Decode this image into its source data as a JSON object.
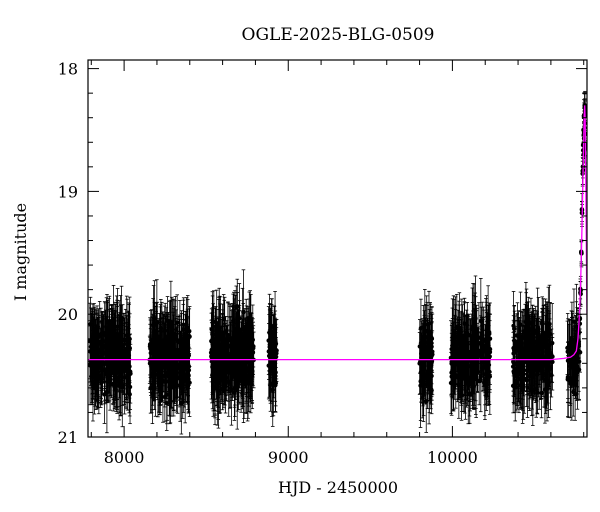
{
  "chart_data": {
    "type": "scatter",
    "title": "OGLE-2025-BLG-0509",
    "xlabel": "HJD - 2450000",
    "ylabel": "I magnitude",
    "xlim": [
      7780,
      10820
    ],
    "ylim": [
      21,
      17.93
    ],
    "y_inverted": true,
    "xticks_major": [
      8000,
      9000,
      10000
    ],
    "xticks_minor_step": 200,
    "yticks_major": [
      18,
      19,
      20,
      21
    ],
    "yticks_minor_step": 0.2,
    "tick_labels_x": [
      "8000",
      "9000",
      "10000"
    ],
    "tick_labels_y": [
      "18",
      "19",
      "20",
      "21"
    ],
    "grid": false,
    "legend": "none",
    "colors": {
      "data": "#000000",
      "model": "#ff00ff",
      "frame": "#000000"
    },
    "series": [
      {
        "kind": "observations-with-errorbars",
        "baseline_mag": 20.35,
        "typical_scatter": 0.22,
        "typical_error": 0.25,
        "seasons": [
          {
            "x_start": 7790,
            "x_end": 8040,
            "points": 260
          },
          {
            "x_start": 8155,
            "x_end": 8400,
            "points": 260
          },
          {
            "x_start": 8530,
            "x_end": 8790,
            "points": 300
          },
          {
            "x_start": 8880,
            "x_end": 8930,
            "points": 60
          },
          {
            "x_start": 9800,
            "x_end": 9880,
            "points": 90
          },
          {
            "x_start": 9990,
            "x_end": 10230,
            "points": 230
          },
          {
            "x_start": 10370,
            "x_end": 10610,
            "points": 230
          },
          {
            "x_start": 10700,
            "x_end": 10780,
            "points": 60
          }
        ],
        "rise": [
          [
            10770,
            20.25
          ],
          [
            10775,
            20.05
          ],
          [
            10780,
            19.8
          ],
          [
            10785,
            19.5
          ],
          [
            10790,
            19.15
          ],
          [
            10795,
            18.85
          ],
          [
            10798,
            18.65
          ],
          [
            10800,
            18.55
          ],
          [
            10803,
            18.4
          ],
          [
            10806,
            18.3
          ],
          [
            10808,
            18.37
          ],
          [
            10810,
            18.6
          ]
        ]
      },
      {
        "kind": "model-curve",
        "points": [
          [
            7780,
            20.37
          ],
          [
            10600,
            20.37
          ],
          [
            10680,
            20.36
          ],
          [
            10720,
            20.35
          ],
          [
            10740,
            20.33
          ],
          [
            10755,
            20.3
          ],
          [
            10765,
            20.2
          ],
          [
            10772,
            20.05
          ],
          [
            10780,
            19.8
          ],
          [
            10787,
            19.45
          ],
          [
            10793,
            19.05
          ],
          [
            10798,
            18.7
          ],
          [
            10803,
            18.38
          ],
          [
            10806,
            18.3
          ],
          [
            10809,
            18.42
          ],
          [
            10812,
            18.8
          ],
          [
            10815,
            19.3
          ],
          [
            10818,
            19.8
          ],
          [
            10820,
            20.0
          ]
        ]
      }
    ]
  }
}
